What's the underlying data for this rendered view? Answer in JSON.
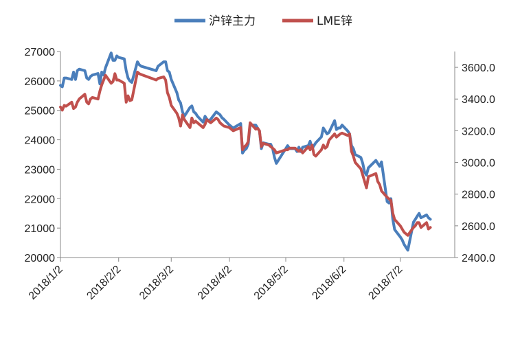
{
  "chart_data": {
    "type": "line",
    "title": "",
    "xlabel": "",
    "ylabel_left": "",
    "ylabel_right": "",
    "legend_position": "top-center",
    "grid": false,
    "y_left_range": [
      20000,
      27000
    ],
    "y_right_range": [
      2400,
      3700
    ],
    "y_left_ticks": [
      "20000",
      "21000",
      "22000",
      "23000",
      "24000",
      "25000",
      "26000",
      "27000"
    ],
    "y_right_ticks": [
      "2400.0",
      "2600.0",
      "2800.0",
      "3000.0",
      "3200.0",
      "3400.0",
      "3600.0"
    ],
    "x_range": [
      "2018/1/2",
      "2018/7/31"
    ],
    "x_ticks": [
      "2018/1/2",
      "2018/2/2",
      "2018/3/2",
      "2018/4/2",
      "2018/5/2",
      "2018/6/2",
      "2018/7/2"
    ],
    "series": [
      {
        "name": "沪锌主力",
        "axis": "left",
        "color": "#4a7ebb",
        "points": [
          [
            "2018-01-02",
            25850
          ],
          [
            "2018-01-03",
            25800
          ],
          [
            "2018-01-04",
            26100
          ],
          [
            "2018-01-05",
            26100
          ],
          [
            "2018-01-08",
            26050
          ],
          [
            "2018-01-09",
            26300
          ],
          [
            "2018-01-10",
            26050
          ],
          [
            "2018-01-11",
            26350
          ],
          [
            "2018-01-12",
            26400
          ],
          [
            "2018-01-15",
            26350
          ],
          [
            "2018-01-16",
            26100
          ],
          [
            "2018-01-17",
            26050
          ],
          [
            "2018-01-18",
            26150
          ],
          [
            "2018-01-19",
            26200
          ],
          [
            "2018-01-22",
            26250
          ],
          [
            "2018-01-23",
            25900
          ],
          [
            "2018-01-24",
            26300
          ],
          [
            "2018-01-25",
            26200
          ],
          [
            "2018-01-26",
            26450
          ],
          [
            "2018-01-29",
            26950
          ],
          [
            "2018-01-30",
            26700
          ],
          [
            "2018-01-31",
            26700
          ],
          [
            "2018-02-01",
            26850
          ],
          [
            "2018-02-02",
            26800
          ],
          [
            "2018-02-05",
            26750
          ],
          [
            "2018-02-06",
            26350
          ],
          [
            "2018-02-07",
            26100
          ],
          [
            "2018-02-08",
            26000
          ],
          [
            "2018-02-09",
            25950
          ],
          [
            "2018-02-12",
            26650
          ],
          [
            "2018-02-13",
            26550
          ],
          [
            "2018-02-14",
            26500
          ],
          [
            "2018-02-22",
            26350
          ],
          [
            "2018-02-23",
            26500
          ],
          [
            "2018-02-26",
            26650
          ],
          [
            "2018-02-27",
            26650
          ],
          [
            "2018-02-28",
            26350
          ],
          [
            "2018-03-01",
            26300
          ],
          [
            "2018-03-02",
            26050
          ],
          [
            "2018-03-05",
            25600
          ],
          [
            "2018-03-06",
            25350
          ],
          [
            "2018-03-07",
            25250
          ],
          [
            "2018-03-08",
            24950
          ],
          [
            "2018-03-09",
            24800
          ],
          [
            "2018-03-12",
            25100
          ],
          [
            "2018-03-13",
            25150
          ],
          [
            "2018-03-14",
            24950
          ],
          [
            "2018-03-15",
            24900
          ],
          [
            "2018-03-16",
            24800
          ],
          [
            "2018-03-19",
            24600
          ],
          [
            "2018-03-20",
            24800
          ],
          [
            "2018-03-21",
            24700
          ],
          [
            "2018-03-22",
            24650
          ],
          [
            "2018-03-23",
            24700
          ],
          [
            "2018-03-26",
            24950
          ],
          [
            "2018-03-27",
            24900
          ],
          [
            "2018-03-28",
            24850
          ],
          [
            "2018-03-29",
            24750
          ],
          [
            "2018-03-30",
            24700
          ],
          [
            "2018-04-02",
            24500
          ],
          [
            "2018-04-03",
            24450
          ],
          [
            "2018-04-04",
            24400
          ],
          [
            "2018-04-08",
            24550
          ],
          [
            "2018-04-09",
            23550
          ],
          [
            "2018-04-10",
            23650
          ],
          [
            "2018-04-11",
            23700
          ],
          [
            "2018-04-12",
            23850
          ],
          [
            "2018-04-13",
            24500
          ],
          [
            "2018-04-16",
            24500
          ],
          [
            "2018-04-17",
            24400
          ],
          [
            "2018-04-18",
            24300
          ],
          [
            "2018-04-19",
            23700
          ],
          [
            "2018-04-20",
            23900
          ],
          [
            "2018-04-23",
            23850
          ],
          [
            "2018-04-24",
            23850
          ],
          [
            "2018-04-25",
            23700
          ],
          [
            "2018-04-26",
            23400
          ],
          [
            "2018-04-27",
            23200
          ],
          [
            "2018-05-02",
            23700
          ],
          [
            "2018-05-03",
            23800
          ],
          [
            "2018-05-04",
            23700
          ],
          [
            "2018-05-07",
            23700
          ],
          [
            "2018-05-08",
            23600
          ],
          [
            "2018-05-09",
            23750
          ],
          [
            "2018-05-10",
            23600
          ],
          [
            "2018-05-11",
            23750
          ],
          [
            "2018-05-14",
            23800
          ],
          [
            "2018-05-15",
            23950
          ],
          [
            "2018-05-16",
            23700
          ],
          [
            "2018-05-17",
            23800
          ],
          [
            "2018-05-18",
            23900
          ],
          [
            "2018-05-21",
            24100
          ],
          [
            "2018-05-22",
            24400
          ],
          [
            "2018-05-23",
            24300
          ],
          [
            "2018-05-24",
            24200
          ],
          [
            "2018-05-25",
            24250
          ],
          [
            "2018-05-28",
            24650
          ],
          [
            "2018-05-29",
            24350
          ],
          [
            "2018-05-30",
            24400
          ],
          [
            "2018-05-31",
            24400
          ],
          [
            "2018-06-01",
            24500
          ],
          [
            "2018-06-04",
            24300
          ],
          [
            "2018-06-05",
            24200
          ],
          [
            "2018-06-06",
            23800
          ],
          [
            "2018-06-07",
            23700
          ],
          [
            "2018-06-08",
            23500
          ],
          [
            "2018-06-11",
            23400
          ],
          [
            "2018-06-12",
            23200
          ],
          [
            "2018-06-13",
            22900
          ],
          [
            "2018-06-14",
            22800
          ],
          [
            "2018-06-15",
            23050
          ],
          [
            "2018-06-19",
            23300
          ],
          [
            "2018-06-20",
            23200
          ],
          [
            "2018-06-21",
            23100
          ],
          [
            "2018-06-22",
            23250
          ],
          [
            "2018-06-25",
            21900
          ],
          [
            "2018-06-26",
            21850
          ],
          [
            "2018-06-27",
            22000
          ],
          [
            "2018-06-28",
            21300
          ],
          [
            "2018-06-29",
            20950
          ],
          [
            "2018-07-02",
            20700
          ],
          [
            "2018-07-03",
            20600
          ],
          [
            "2018-07-04",
            20450
          ],
          [
            "2018-07-05",
            20350
          ],
          [
            "2018-07-06",
            20250
          ],
          [
            "2018-07-09",
            21200
          ],
          [
            "2018-07-10",
            21300
          ],
          [
            "2018-07-11",
            21400
          ],
          [
            "2018-07-12",
            21500
          ],
          [
            "2018-07-13",
            21350
          ],
          [
            "2018-07-16",
            21450
          ],
          [
            "2018-07-17",
            21350
          ],
          [
            "2018-07-18",
            21300
          ]
        ]
      },
      {
        "name": "LME锌",
        "axis": "right",
        "color": "#c0504d",
        "points": [
          [
            "2018-01-02",
            3350
          ],
          [
            "2018-01-03",
            3330
          ],
          [
            "2018-01-04",
            3360
          ],
          [
            "2018-01-05",
            3355
          ],
          [
            "2018-01-08",
            3380
          ],
          [
            "2018-01-09",
            3340
          ],
          [
            "2018-01-10",
            3350
          ],
          [
            "2018-01-11",
            3380
          ],
          [
            "2018-01-12",
            3400
          ],
          [
            "2018-01-15",
            3430
          ],
          [
            "2018-01-16",
            3380
          ],
          [
            "2018-01-17",
            3370
          ],
          [
            "2018-01-18",
            3400
          ],
          [
            "2018-01-19",
            3410
          ],
          [
            "2018-01-22",
            3400
          ],
          [
            "2018-01-23",
            3450
          ],
          [
            "2018-01-24",
            3490
          ],
          [
            "2018-01-25",
            3520
          ],
          [
            "2018-01-26",
            3550
          ],
          [
            "2018-01-29",
            3500
          ],
          [
            "2018-01-30",
            3510
          ],
          [
            "2018-01-31",
            3560
          ],
          [
            "2018-02-01",
            3520
          ],
          [
            "2018-02-02",
            3520
          ],
          [
            "2018-02-05",
            3500
          ],
          [
            "2018-02-06",
            3380
          ],
          [
            "2018-02-07",
            3420
          ],
          [
            "2018-02-08",
            3390
          ],
          [
            "2018-02-09",
            3395
          ],
          [
            "2018-02-12",
            3570
          ],
          [
            "2018-02-13",
            3560
          ],
          [
            "2018-02-14",
            3555
          ],
          [
            "2018-02-22",
            3520
          ],
          [
            "2018-02-23",
            3530
          ],
          [
            "2018-02-26",
            3540
          ],
          [
            "2018-02-27",
            3520
          ],
          [
            "2018-02-28",
            3440
          ],
          [
            "2018-03-01",
            3410
          ],
          [
            "2018-03-02",
            3360
          ],
          [
            "2018-03-05",
            3310
          ],
          [
            "2018-03-06",
            3280
          ],
          [
            "2018-03-07",
            3230
          ],
          [
            "2018-03-08",
            3300
          ],
          [
            "2018-03-09",
            3270
          ],
          [
            "2018-03-12",
            3220
          ],
          [
            "2018-03-13",
            3280
          ],
          [
            "2018-03-14",
            3250
          ],
          [
            "2018-03-15",
            3260
          ],
          [
            "2018-03-16",
            3250
          ],
          [
            "2018-03-19",
            3220
          ],
          [
            "2018-03-20",
            3240
          ],
          [
            "2018-03-21",
            3270
          ],
          [
            "2018-03-22",
            3260
          ],
          [
            "2018-03-23",
            3250
          ],
          [
            "2018-03-26",
            3280
          ],
          [
            "2018-03-27",
            3270
          ],
          [
            "2018-03-28",
            3250
          ],
          [
            "2018-03-29",
            3240
          ],
          [
            "2018-03-30",
            3230
          ],
          [
            "2018-04-02",
            3220
          ],
          [
            "2018-04-03",
            3210
          ],
          [
            "2018-04-04",
            3200
          ],
          [
            "2018-04-08",
            3220
          ],
          [
            "2018-04-09",
            3080
          ],
          [
            "2018-04-10",
            3100
          ],
          [
            "2018-04-11",
            3110
          ],
          [
            "2018-04-12",
            3130
          ],
          [
            "2018-04-13",
            3250
          ],
          [
            "2018-04-16",
            3210
          ],
          [
            "2018-04-17",
            3215
          ],
          [
            "2018-04-18",
            3200
          ],
          [
            "2018-04-19",
            3100
          ],
          [
            "2018-04-20",
            3120
          ],
          [
            "2018-04-23",
            3110
          ],
          [
            "2018-04-24",
            3100
          ],
          [
            "2018-04-25",
            3090
          ],
          [
            "2018-04-26",
            3080
          ],
          [
            "2018-04-27",
            3060
          ],
          [
            "2018-05-02",
            3080
          ],
          [
            "2018-05-03",
            3080
          ],
          [
            "2018-05-04",
            3090
          ],
          [
            "2018-05-07",
            3090
          ],
          [
            "2018-05-08",
            3080
          ],
          [
            "2018-05-09",
            3070
          ],
          [
            "2018-05-10",
            3080
          ],
          [
            "2018-05-11",
            3060
          ],
          [
            "2018-05-14",
            3100
          ],
          [
            "2018-05-15",
            3080
          ],
          [
            "2018-05-16",
            3110
          ],
          [
            "2018-05-17",
            3050
          ],
          [
            "2018-05-18",
            3040
          ],
          [
            "2018-05-21",
            3080
          ],
          [
            "2018-05-22",
            3110
          ],
          [
            "2018-05-23",
            3090
          ],
          [
            "2018-05-24",
            3100
          ],
          [
            "2018-05-25",
            3140
          ],
          [
            "2018-05-28",
            3180
          ],
          [
            "2018-05-29",
            3160
          ],
          [
            "2018-05-30",
            3170
          ],
          [
            "2018-05-31",
            3180
          ],
          [
            "2018-06-01",
            3185
          ],
          [
            "2018-06-04",
            3170
          ],
          [
            "2018-06-05",
            3180
          ],
          [
            "2018-06-06",
            3070
          ],
          [
            "2018-06-07",
            3040
          ],
          [
            "2018-06-08",
            3000
          ],
          [
            "2018-06-11",
            2960
          ],
          [
            "2018-06-12",
            2920
          ],
          [
            "2018-06-13",
            2880
          ],
          [
            "2018-06-14",
            2840
          ],
          [
            "2018-06-15",
            2910
          ],
          [
            "2018-06-19",
            2930
          ],
          [
            "2018-06-20",
            2880
          ],
          [
            "2018-06-21",
            2860
          ],
          [
            "2018-06-22",
            2820
          ],
          [
            "2018-06-25",
            2780
          ],
          [
            "2018-06-26",
            2770
          ],
          [
            "2018-06-27",
            2760
          ],
          [
            "2018-06-28",
            2680
          ],
          [
            "2018-06-29",
            2640
          ],
          [
            "2018-07-02",
            2600
          ],
          [
            "2018-07-03",
            2580
          ],
          [
            "2018-07-04",
            2560
          ],
          [
            "2018-07-05",
            2550
          ],
          [
            "2018-07-06",
            2540
          ],
          [
            "2018-07-09",
            2590
          ],
          [
            "2018-07-10",
            2600
          ],
          [
            "2018-07-11",
            2620
          ],
          [
            "2018-07-12",
            2620
          ],
          [
            "2018-07-13",
            2590
          ],
          [
            "2018-07-16",
            2620
          ],
          [
            "2018-07-17",
            2580
          ],
          [
            "2018-07-18",
            2590
          ]
        ]
      }
    ]
  }
}
